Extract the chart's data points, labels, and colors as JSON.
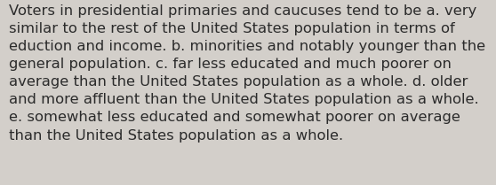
{
  "text_lines": [
    "Voters in presidential primaries and caucuses tend to be a. very",
    "similar to the rest of the United States population in terms of",
    "eduction and income. b. minorities and notably younger than the",
    "general population. c. far less educated and much poorer on",
    "average than the United States population as a whole. d. older",
    "and more affluent than the United States population as a whole.",
    "e. somewhat less educated and somewhat poorer on average",
    "than the United States population as a whole."
  ],
  "background_color": "#d3cfca",
  "text_color": "#2b2b2b",
  "font_size": 11.8,
  "font_family": "DejaVu Sans",
  "fig_width": 5.58,
  "fig_height": 2.09,
  "dpi": 100
}
